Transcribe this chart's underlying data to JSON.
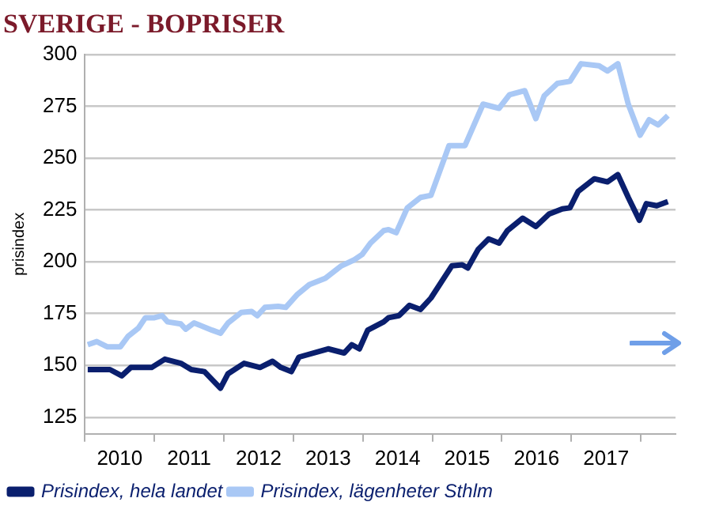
{
  "chart_data": {
    "type": "line",
    "title": "SVERIGE - BOPRISER",
    "ylabel": "prisindex",
    "xlim": [
      2010,
      2018.5
    ],
    "xticks": [
      {
        "value": 2010,
        "label": null
      },
      {
        "value": 2010.5,
        "label": "2010"
      },
      {
        "value": 2011,
        "label": null
      },
      {
        "value": 2011.5,
        "label": "2011"
      },
      {
        "value": 2012,
        "label": null
      },
      {
        "value": 2012.5,
        "label": "2012"
      },
      {
        "value": 2013,
        "label": null
      },
      {
        "value": 2013.5,
        "label": "2013"
      },
      {
        "value": 2014,
        "label": null
      },
      {
        "value": 2014.5,
        "label": "2014"
      },
      {
        "value": 2015,
        "label": null
      },
      {
        "value": 2015.5,
        "label": "2015"
      },
      {
        "value": 2016,
        "label": null
      },
      {
        "value": 2016.5,
        "label": "2016"
      },
      {
        "value": 2017,
        "label": null
      },
      {
        "value": 2017.5,
        "label": "2017"
      },
      {
        "value": 2018,
        "label": null
      }
    ],
    "ylim": [
      117,
      300
    ],
    "yticks": [
      125,
      150,
      175,
      200,
      225,
      250,
      275,
      300
    ],
    "grid": "y",
    "legend": "bottom",
    "marker": "none",
    "line_style": "solid",
    "series": [
      {
        "name": "Prisindex, hela landet",
        "color": "#0a1f6e",
        "x": [
          2010.04,
          2010.36,
          2010.53,
          2010.66,
          2010.96,
          2011.15,
          2011.38,
          2011.53,
          2011.72,
          2011.95,
          2012.06,
          2012.29,
          2012.52,
          2012.7,
          2012.82,
          2012.97,
          2013.08,
          2013.5,
          2013.73,
          2013.84,
          2013.95,
          2014.07,
          2014.3,
          2014.37,
          2014.52,
          2014.67,
          2014.83,
          2014.98,
          2015.28,
          2015.43,
          2015.51,
          2015.66,
          2015.81,
          2015.96,
          2016.08,
          2016.3,
          2016.49,
          2016.68,
          2016.87,
          2016.98,
          2017.1,
          2017.33,
          2017.52,
          2017.67,
          2017.82,
          2017.98,
          2018.08,
          2018.23,
          2018.39
        ],
        "values": [
          148,
          148,
          145,
          149,
          149,
          153,
          151,
          148,
          147,
          139,
          146,
          151,
          149,
          152,
          149,
          147,
          154,
          158,
          156,
          160,
          158,
          167,
          171,
          173,
          174,
          179,
          177,
          182.5,
          198,
          198.5,
          197,
          206,
          211,
          209,
          215,
          221,
          217,
          223,
          225.5,
          226,
          234,
          240,
          238.5,
          242,
          231,
          220,
          228,
          227,
          229
        ]
      },
      {
        "name": "Prisindex, lägenheter Sthlm",
        "color": "#a9c8f5",
        "x": [
          2010.04,
          2010.17,
          2010.32,
          2010.51,
          2010.62,
          2010.77,
          2010.87,
          2011.0,
          2011.11,
          2011.19,
          2011.38,
          2011.45,
          2011.57,
          2011.83,
          2011.95,
          2012.06,
          2012.25,
          2012.4,
          2012.48,
          2012.59,
          2012.78,
          2012.89,
          2013.05,
          2013.23,
          2013.46,
          2013.69,
          2013.88,
          2013.99,
          2014.11,
          2014.3,
          2014.37,
          2014.48,
          2014.64,
          2014.83,
          2014.98,
          2015.24,
          2015.47,
          2015.73,
          2015.96,
          2016.11,
          2016.33,
          2016.49,
          2016.61,
          2016.8,
          2016.98,
          2017.14,
          2017.4,
          2017.52,
          2017.67,
          2017.82,
          2017.99,
          2018.12,
          2018.25,
          2018.39
        ],
        "values": [
          160,
          161.5,
          159,
          159,
          164,
          168,
          173,
          173,
          174,
          171,
          170,
          167.5,
          170.5,
          167,
          165.5,
          170.5,
          175.5,
          176,
          174,
          178,
          178.5,
          178,
          184,
          189,
          192,
          198,
          201,
          203.5,
          209,
          215,
          215.5,
          214,
          226,
          231,
          232,
          256,
          256,
          276,
          274,
          280.5,
          282.5,
          269,
          280,
          286,
          287,
          295.5,
          294.5,
          292,
          295.5,
          276,
          261,
          268.5,
          266,
          270.5
        ]
      }
    ]
  }
}
